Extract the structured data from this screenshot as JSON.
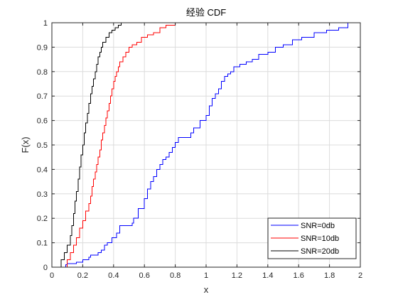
{
  "chart_data": {
    "type": "line",
    "title": "经验 CDF",
    "xlabel": "x",
    "ylabel": "F(x)",
    "xlim": [
      0,
      2
    ],
    "ylim": [
      0,
      1
    ],
    "xticks": [
      0,
      0.2,
      0.4,
      0.6,
      0.8,
      1,
      1.2,
      1.4,
      1.6,
      1.8,
      2
    ],
    "yticks": [
      0,
      0.1,
      0.2,
      0.3,
      0.4,
      0.5,
      0.6,
      0.7,
      0.8,
      0.9,
      1
    ],
    "xtick_labels": [
      "0",
      "0.2",
      "0.4",
      "0.6",
      "0.8",
      "1",
      "1.2",
      "1.4",
      "1.6",
      "1.8",
      "2"
    ],
    "ytick_labels": [
      "0",
      "0.1",
      "0.2",
      "0.3",
      "0.4",
      "0.5",
      "0.6",
      "0.7",
      "0.8",
      "0.9",
      "1"
    ],
    "grid": true,
    "legend_position": "bottom-right",
    "series": [
      {
        "name": "SNR=0db",
        "color": "#0000ff",
        "x": [
          0.08,
          0.09,
          0.1,
          0.16,
          0.2,
          0.24,
          0.25,
          0.3,
          0.32,
          0.34,
          0.36,
          0.39,
          0.42,
          0.44,
          0.47,
          0.5,
          0.52,
          0.53,
          0.56,
          0.6,
          0.62,
          0.64,
          0.66,
          0.68,
          0.7,
          0.72,
          0.74,
          0.76,
          0.78,
          0.8,
          0.82,
          0.84,
          0.86,
          0.88,
          0.9,
          0.92,
          0.96,
          1.0,
          1.02,
          1.04,
          1.06,
          1.08,
          1.1,
          1.12,
          1.14,
          1.16,
          1.18,
          1.22,
          1.26,
          1.3,
          1.34,
          1.4,
          1.45,
          1.5,
          1.56,
          1.62,
          1.7,
          1.78,
          1.86,
          1.92,
          2.0
        ],
        "y": [
          0,
          0.01,
          0.015,
          0.02,
          0.03,
          0.04,
          0.05,
          0.06,
          0.07,
          0.09,
          0.1,
          0.12,
          0.14,
          0.17,
          0.17,
          0.17,
          0.18,
          0.2,
          0.24,
          0.28,
          0.32,
          0.35,
          0.37,
          0.4,
          0.42,
          0.44,
          0.45,
          0.47,
          0.49,
          0.51,
          0.53,
          0.53,
          0.53,
          0.53,
          0.55,
          0.57,
          0.6,
          0.62,
          0.66,
          0.69,
          0.71,
          0.73,
          0.76,
          0.78,
          0.79,
          0.8,
          0.82,
          0.83,
          0.84,
          0.85,
          0.87,
          0.88,
          0.9,
          0.91,
          0.93,
          0.94,
          0.96,
          0.97,
          0.98,
          1.0,
          1.0
        ]
      },
      {
        "name": "SNR=10db",
        "color": "#ff0000",
        "x": [
          0.08,
          0.1,
          0.12,
          0.14,
          0.16,
          0.18,
          0.2,
          0.22,
          0.24,
          0.25,
          0.26,
          0.27,
          0.28,
          0.29,
          0.3,
          0.31,
          0.32,
          0.33,
          0.34,
          0.35,
          0.36,
          0.37,
          0.38,
          0.39,
          0.4,
          0.41,
          0.42,
          0.43,
          0.44,
          0.46,
          0.48,
          0.5,
          0.52,
          0.55,
          0.58,
          0.62,
          0.66,
          0.7,
          0.74,
          0.8
        ],
        "y": [
          0,
          0.03,
          0.06,
          0.09,
          0.12,
          0.16,
          0.19,
          0.23,
          0.26,
          0.29,
          0.33,
          0.36,
          0.39,
          0.42,
          0.45,
          0.48,
          0.52,
          0.55,
          0.58,
          0.61,
          0.64,
          0.67,
          0.7,
          0.73,
          0.76,
          0.78,
          0.8,
          0.82,
          0.84,
          0.86,
          0.88,
          0.9,
          0.91,
          0.92,
          0.94,
          0.95,
          0.96,
          0.98,
          0.99,
          1.0
        ]
      },
      {
        "name": "SNR=20db",
        "color": "#000000",
        "x": [
          0.04,
          0.06,
          0.08,
          0.1,
          0.12,
          0.13,
          0.14,
          0.15,
          0.16,
          0.17,
          0.18,
          0.19,
          0.2,
          0.21,
          0.22,
          0.23,
          0.24,
          0.25,
          0.26,
          0.27,
          0.28,
          0.29,
          0.3,
          0.31,
          0.32,
          0.33,
          0.35,
          0.37,
          0.39,
          0.41,
          0.43,
          0.45
        ],
        "y": [
          0,
          0.03,
          0.06,
          0.09,
          0.13,
          0.17,
          0.22,
          0.27,
          0.31,
          0.36,
          0.41,
          0.46,
          0.5,
          0.55,
          0.59,
          0.63,
          0.67,
          0.71,
          0.74,
          0.77,
          0.8,
          0.83,
          0.86,
          0.88,
          0.9,
          0.92,
          0.94,
          0.96,
          0.97,
          0.98,
          0.99,
          1.0
        ]
      }
    ]
  }
}
